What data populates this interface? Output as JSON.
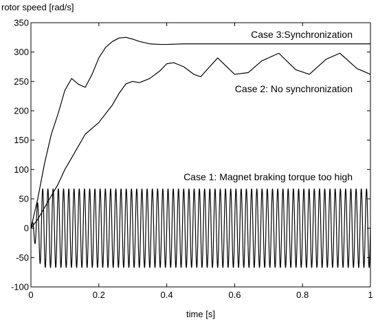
{
  "chart_data": {
    "type": "line",
    "title": "",
    "ylabel": "rotor speed [rad/s]",
    "xlabel": "time [s]",
    "xlim": [
      0,
      1
    ],
    "ylim": [
      -100,
      350
    ],
    "xticks": [
      0,
      0.2,
      0.4,
      0.6,
      0.8,
      1
    ],
    "xtick_labels": [
      "0",
      "0.2",
      "0.4",
      "0.6",
      "0.8",
      "1"
    ],
    "yticks": [
      -100,
      -50,
      0,
      50,
      100,
      150,
      200,
      250,
      300,
      350
    ],
    "ytick_labels": [
      "-100",
      "-50",
      "0",
      "50",
      "100",
      "150",
      "200",
      "250",
      "300",
      "350"
    ],
    "grid": false,
    "line_color": "#000000",
    "series": [
      {
        "key": "case3",
        "x": [
          0,
          0.02,
          0.04,
          0.06,
          0.08,
          0.1,
          0.12,
          0.14,
          0.16,
          0.18,
          0.2,
          0.22,
          0.24,
          0.26,
          0.28,
          0.3,
          0.32,
          0.35,
          0.38,
          0.4,
          0.45,
          0.5,
          0.6,
          0.7,
          0.8,
          0.9,
          1.0
        ],
        "y": [
          0,
          50,
          110,
          160,
          195,
          235,
          255,
          245,
          240,
          262,
          290,
          308,
          318,
          324,
          325,
          322,
          318,
          314,
          313,
          313,
          314,
          314,
          314,
          314,
          314,
          314,
          314
        ]
      },
      {
        "key": "case2",
        "x": [
          0,
          0.02,
          0.04,
          0.06,
          0.08,
          0.1,
          0.12,
          0.14,
          0.16,
          0.18,
          0.2,
          0.22,
          0.24,
          0.26,
          0.28,
          0.3,
          0.32,
          0.35,
          0.38,
          0.4,
          0.42,
          0.45,
          0.48,
          0.5,
          0.55,
          0.6,
          0.64,
          0.68,
          0.73,
          0.78,
          0.82,
          0.87,
          0.91,
          0.96,
          1.0
        ],
        "y": [
          0,
          15,
          35,
          55,
          75,
          100,
          120,
          140,
          160,
          170,
          180,
          195,
          210,
          230,
          246,
          250,
          248,
          255,
          268,
          280,
          282,
          275,
          262,
          258,
          290,
          262,
          265,
          285,
          298,
          270,
          262,
          288,
          298,
          272,
          262
        ]
      },
      {
        "key": "case1",
        "oscillation": {
          "amplitude": 67,
          "frequency_hz": 65,
          "rise_time_s": 0.03,
          "x_range": [
            0,
            1
          ]
        }
      }
    ],
    "annotations": [
      {
        "key": "case3",
        "text": "Case 3:Synchronization"
      },
      {
        "key": "case2",
        "text": "Case 2: No synchronization"
      },
      {
        "key": "case1",
        "text": "Case 1: Magnet braking torque too high"
      }
    ]
  }
}
